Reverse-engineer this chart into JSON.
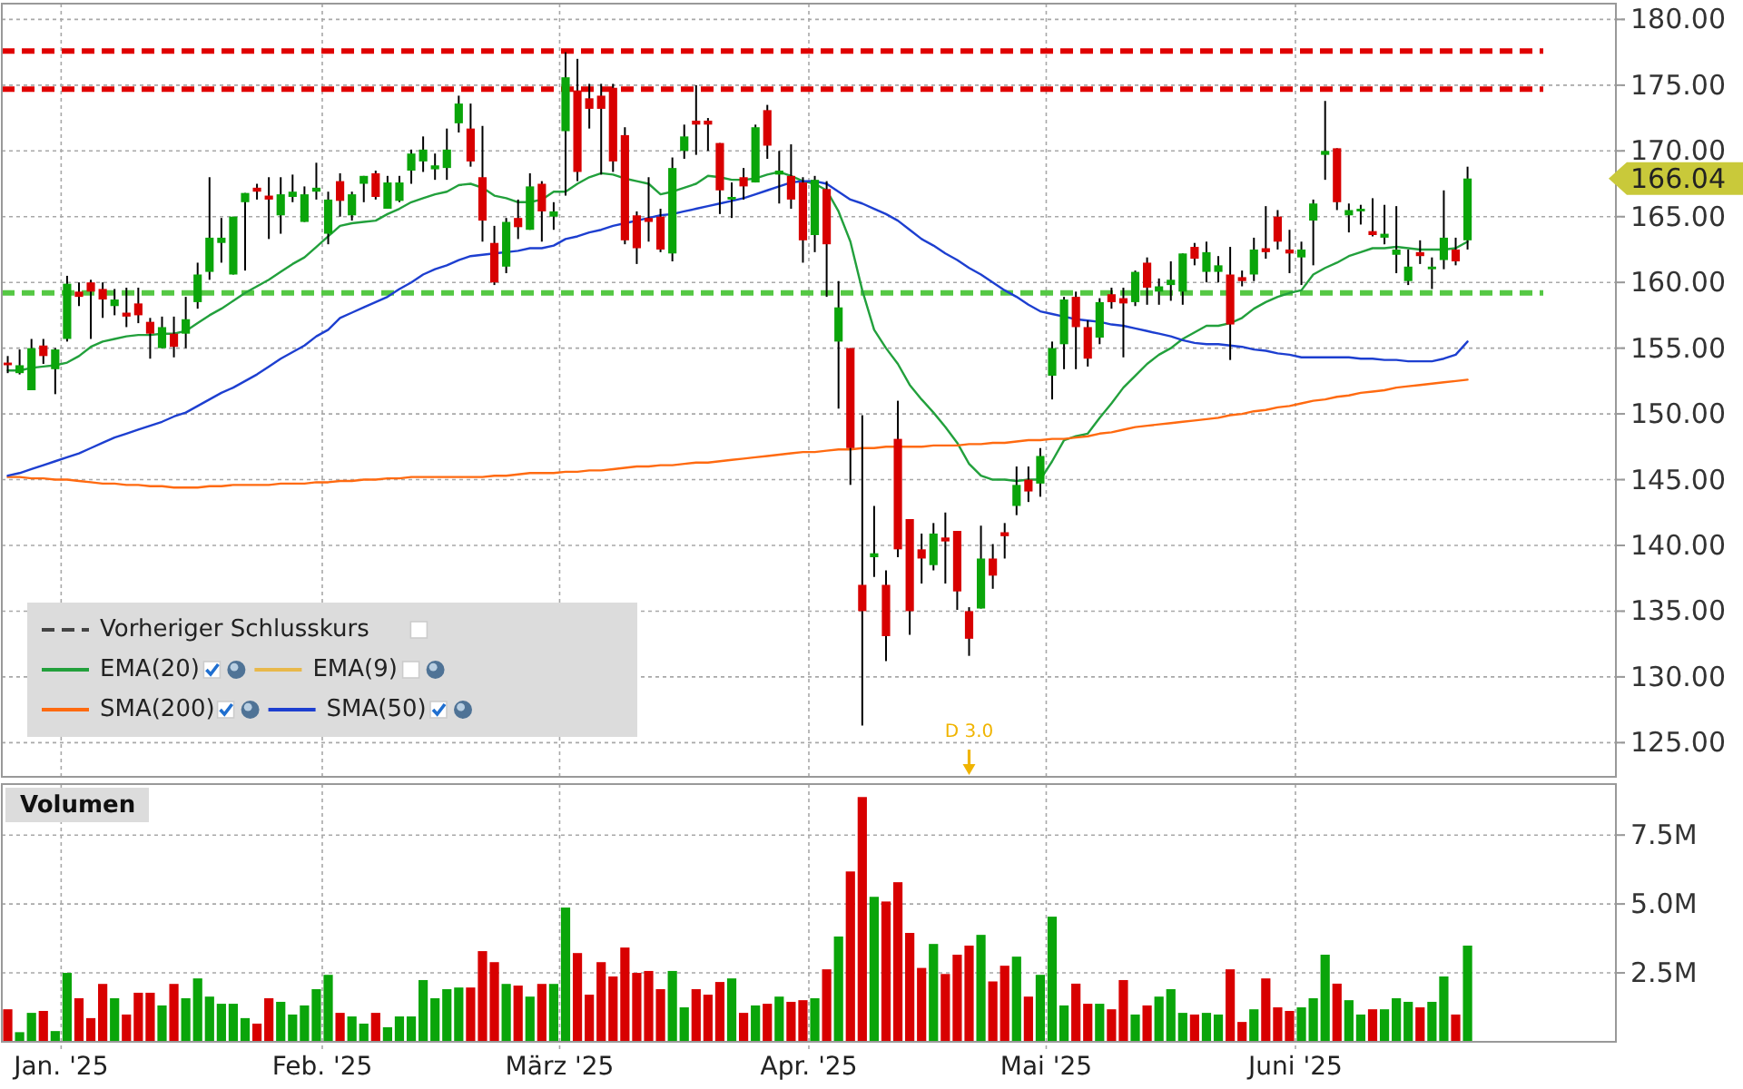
{
  "chart_data": [
    {
      "type": "candlestick",
      "categories": [
        null,
        null,
        null,
        null,
        null,
        null,
        null,
        null,
        null,
        null,
        null,
        null,
        null,
        null,
        null,
        null,
        null,
        null,
        null,
        null,
        null,
        null,
        null,
        null,
        null,
        null,
        null,
        null,
        null,
        null,
        null,
        null,
        null,
        null,
        null,
        null,
        null,
        null,
        null,
        null,
        null,
        null,
        null,
        null,
        null,
        null,
        null,
        null,
        null,
        null,
        null,
        null,
        null,
        null,
        null,
        null,
        null,
        null,
        null,
        null,
        null,
        null,
        null,
        null,
        null,
        null,
        null,
        null,
        null,
        null,
        null,
        null,
        null,
        null,
        null,
        null,
        null,
        null,
        null,
        null,
        null,
        null,
        null,
        null,
        null,
        null,
        null,
        null,
        null,
        null,
        null,
        null,
        null,
        null,
        null,
        null,
        null,
        null,
        null,
        null,
        null,
        null,
        null,
        null,
        null,
        null,
        null,
        null,
        null,
        null,
        null,
        null,
        null,
        null,
        null,
        null,
        null,
        null,
        null,
        null,
        null,
        null,
        null,
        null,
        null,
        null,
        null,
        null,
        null,
        null,
        null,
        null,
        null,
        null,
        null,
        null
      ],
      "ohlc": [
        [
          153.9,
          154.4,
          153.1,
          153.7
        ],
        [
          153.1,
          154.9,
          153.0,
          153.7
        ],
        [
          151.8,
          155.7,
          151.8,
          155.0
        ],
        [
          155.2,
          155.7,
          153.8,
          154.4
        ],
        [
          153.4,
          155.0,
          151.5,
          154.9
        ],
        [
          155.7,
          160.5,
          155.5,
          159.9
        ],
        [
          159.3,
          160.0,
          158.2,
          158.9
        ],
        [
          160.0,
          160.2,
          155.7,
          159.3
        ],
        [
          159.5,
          160.0,
          157.3,
          158.7
        ],
        [
          158.2,
          159.5,
          157.5,
          158.7
        ],
        [
          157.7,
          159.6,
          156.6,
          157.4
        ],
        [
          158.4,
          159.6,
          156.9,
          157.5
        ],
        [
          157.0,
          157.3,
          154.2,
          156.1
        ],
        [
          155.0,
          157.4,
          155.0,
          156.6
        ],
        [
          156.1,
          157.4,
          154.3,
          155.1
        ],
        [
          156.1,
          158.9,
          155.0,
          157.2
        ],
        [
          158.5,
          161.5,
          158.0,
          160.6
        ],
        [
          160.8,
          168.0,
          160.2,
          163.4
        ],
        [
          163.0,
          164.9,
          161.5,
          163.4
        ],
        [
          160.6,
          165.0,
          160.6,
          165.0
        ],
        [
          166.1,
          166.8,
          160.9,
          166.8
        ],
        [
          167.2,
          167.5,
          166.3,
          166.9
        ],
        [
          166.6,
          168.0,
          163.3,
          166.3
        ],
        [
          165.1,
          168.0,
          163.7,
          166.7
        ],
        [
          166.5,
          168.2,
          166.1,
          166.9
        ],
        [
          164.6,
          167.3,
          164.6,
          166.7
        ],
        [
          166.9,
          169.1,
          166.3,
          167.2
        ],
        [
          163.7,
          166.9,
          162.9,
          166.3
        ],
        [
          167.7,
          168.3,
          165.0,
          166.2
        ],
        [
          165.1,
          166.9,
          164.7,
          166.7
        ],
        [
          167.5,
          168.1,
          166.1,
          168.1
        ],
        [
          168.3,
          168.5,
          166.3,
          166.5
        ],
        [
          165.6,
          168.1,
          165.6,
          167.6
        ],
        [
          166.2,
          168.1,
          166.1,
          167.6
        ],
        [
          168.5,
          170.1,
          167.5,
          169.8
        ],
        [
          169.2,
          171.1,
          168.4,
          170.1
        ],
        [
          168.6,
          169.8,
          167.8,
          168.9
        ],
        [
          168.7,
          171.7,
          167.8,
          170.1
        ],
        [
          172.1,
          174.2,
          171.4,
          173.6
        ],
        [
          171.7,
          173.6,
          168.8,
          169.2
        ],
        [
          168.0,
          171.9,
          163.1,
          164.7
        ],
        [
          163.0,
          164.3,
          159.8,
          160.0
        ],
        [
          161.2,
          164.9,
          160.7,
          164.6
        ],
        [
          164.9,
          166.3,
          163.3,
          164.2
        ],
        [
          164.0,
          168.3,
          164.0,
          167.3
        ],
        [
          167.5,
          167.7,
          163.1,
          165.4
        ],
        [
          165.0,
          166.1,
          164.0,
          165.4
        ],
        [
          171.5,
          177.5,
          166.6,
          175.6
        ],
        [
          174.6,
          177.0,
          167.7,
          168.4
        ],
        [
          174.0,
          175.1,
          171.7,
          173.2
        ],
        [
          174.2,
          175.1,
          168.2,
          173.2
        ],
        [
          174.8,
          175.1,
          168.4,
          169.2
        ],
        [
          171.2,
          171.8,
          162.9,
          163.2
        ],
        [
          165.1,
          165.4,
          161.4,
          162.6
        ],
        [
          164.9,
          168.0,
          163.1,
          164.6
        ],
        [
          165.0,
          165.6,
          162.3,
          162.5
        ],
        [
          162.2,
          169.5,
          161.6,
          168.7
        ],
        [
          170.0,
          172.0,
          169.4,
          171.1
        ],
        [
          172.3,
          175.0,
          169.7,
          172.0
        ],
        [
          172.3,
          172.5,
          170.0,
          172.0
        ],
        [
          170.6,
          170.6,
          165.2,
          167.0
        ],
        [
          166.3,
          167.6,
          164.9,
          166.5
        ],
        [
          168.0,
          168.7,
          166.3,
          167.3
        ],
        [
          167.6,
          172.0,
          167.6,
          171.8
        ],
        [
          173.1,
          173.5,
          169.4,
          170.4
        ],
        [
          168.2,
          170.0,
          166.0,
          168.5
        ],
        [
          168.1,
          170.5,
          165.6,
          166.3
        ],
        [
          167.6,
          168.0,
          161.5,
          163.2
        ],
        [
          163.6,
          168.1,
          162.3,
          167.8
        ],
        [
          167.1,
          167.7,
          158.9,
          162.9
        ],
        [
          155.5,
          160.1,
          150.4,
          158.1
        ],
        [
          155.0,
          155.0,
          144.6,
          147.4
        ],
        [
          137.0,
          149.9,
          126.3,
          135.0
        ],
        [
          139.1,
          143.0,
          137.6,
          139.4
        ],
        [
          137.0,
          138.1,
          131.2,
          133.1
        ],
        [
          148.1,
          151.0,
          139.1,
          139.7
        ],
        [
          142.0,
          142.0,
          133.2,
          135.0
        ],
        [
          139.7,
          140.9,
          137.1,
          139.0
        ],
        [
          138.5,
          141.7,
          138.1,
          140.9
        ],
        [
          140.6,
          142.5,
          137.1,
          140.3
        ],
        [
          141.1,
          141.1,
          135.1,
          136.5
        ],
        [
          135.0,
          135.3,
          131.6,
          132.9
        ],
        [
          135.2,
          141.5,
          135.2,
          139.0
        ],
        [
          139.0,
          140.1,
          136.7,
          137.7
        ],
        [
          141.0,
          141.7,
          139.0,
          140.7
        ],
        [
          143.0,
          146.0,
          142.3,
          144.6
        ],
        [
          145.0,
          146.0,
          143.3,
          144.1
        ],
        [
          144.7,
          147.4,
          143.7,
          146.8
        ],
        [
          152.9,
          155.5,
          151.1,
          155.0
        ],
        [
          155.3,
          158.9,
          153.4,
          158.7
        ],
        [
          158.9,
          159.3,
          153.4,
          156.6
        ],
        [
          156.6,
          157.1,
          153.6,
          154.2
        ],
        [
          155.8,
          158.8,
          155.3,
          158.5
        ],
        [
          159.1,
          159.6,
          158.0,
          158.5
        ],
        [
          158.8,
          159.6,
          154.3,
          158.4
        ],
        [
          158.5,
          160.9,
          158.2,
          160.8
        ],
        [
          161.5,
          161.9,
          158.3,
          159.6
        ],
        [
          159.3,
          160.3,
          158.3,
          159.7
        ],
        [
          159.8,
          161.6,
          158.6,
          160.2
        ],
        [
          159.3,
          162.2,
          158.3,
          162.2
        ],
        [
          162.7,
          163.0,
          161.3,
          161.8
        ],
        [
          160.8,
          163.1,
          160.0,
          162.3
        ],
        [
          160.8,
          162.0,
          160.0,
          161.3
        ],
        [
          160.6,
          162.7,
          154.1,
          156.8
        ],
        [
          160.4,
          160.9,
          159.7,
          160.1
        ],
        [
          160.6,
          163.4,
          160.1,
          162.5
        ],
        [
          162.6,
          165.8,
          161.8,
          162.3
        ],
        [
          165.0,
          165.5,
          162.5,
          163.1
        ],
        [
          162.5,
          164.0,
          160.7,
          162.2
        ],
        [
          161.9,
          163.1,
          159.8,
          162.5
        ],
        [
          164.7,
          166.3,
          161.3,
          166.0
        ],
        [
          169.7,
          173.8,
          167.8,
          170.0
        ],
        [
          170.2,
          170.2,
          165.5,
          166.1
        ],
        [
          165.1,
          166.0,
          163.8,
          165.5
        ],
        [
          165.4,
          165.9,
          164.4,
          165.6
        ],
        [
          163.9,
          166.4,
          163.5,
          163.6
        ],
        [
          163.4,
          165.9,
          162.9,
          163.7
        ],
        [
          162.1,
          165.8,
          160.7,
          162.5
        ],
        [
          160.1,
          162.5,
          159.8,
          161.2
        ],
        [
          162.3,
          163.2,
          161.4,
          162.0
        ],
        [
          161.0,
          161.9,
          159.5,
          161.2
        ],
        [
          161.7,
          167.0,
          161.0,
          163.4
        ],
        [
          162.5,
          163.4,
          161.3,
          161.6
        ],
        [
          163.2,
          168.8,
          162.5,
          167.9
        ],
        null,
        null,
        null,
        null,
        null,
        null,
        null,
        null,
        null,
        null,
        null,
        null
      ],
      "colors": [
        "#d80000",
        "#0aa50a",
        "#0aa50a",
        "#d80000",
        "#0aa50a",
        "#0aa50a",
        "#d80000",
        "#d80000",
        "#d80000",
        "#0aa50a",
        "#d80000",
        "#d80000",
        "#d80000",
        "#0aa50a",
        "#d80000",
        "#0aa50a",
        "#0aa50a",
        "#0aa50a",
        "#0aa50a",
        "#0aa50a",
        "#0aa50a",
        "#d80000",
        "#d80000",
        "#0aa50a",
        "#0aa50a",
        "#0aa50a",
        "#0aa50a",
        "#0aa50a",
        "#d80000",
        "#0aa50a",
        "#0aa50a",
        "#d80000",
        "#0aa50a",
        "#0aa50a",
        "#0aa50a",
        "#0aa50a",
        "#0aa50a",
        "#0aa50a",
        "#0aa50a",
        "#d80000",
        "#d80000",
        "#d80000",
        "#0aa50a",
        "#d80000",
        "#0aa50a",
        "#d80000",
        "#0aa50a",
        "#0aa50a",
        "#d80000",
        "#d80000",
        "#d80000",
        "#d80000",
        "#d80000",
        "#d80000",
        "#d80000",
        "#d80000",
        "#0aa50a",
        "#0aa50a",
        "#d80000",
        "#d80000",
        "#d80000",
        "#0aa50a",
        "#d80000",
        "#0aa50a",
        "#d80000",
        "#0aa50a",
        "#d80000",
        "#d80000",
        "#0aa50a",
        "#d80000",
        "#0aa50a",
        "#d80000",
        "#d80000",
        "#0aa50a",
        "#d80000",
        "#d80000",
        "#d80000",
        "#d80000",
        "#0aa50a",
        "#d80000",
        "#d80000",
        "#d80000",
        "#0aa50a",
        "#d80000",
        "#d80000",
        "#0aa50a",
        "#d80000",
        "#0aa50a",
        "#0aa50a",
        "#0aa50a",
        "#d80000",
        "#d80000",
        "#0aa50a",
        "#d80000",
        "#d80000",
        "#0aa50a",
        "#d80000",
        "#0aa50a",
        "#0aa50a",
        "#0aa50a",
        "#d80000",
        "#0aa50a",
        "#0aa50a",
        "#d80000",
        "#d80000",
        "#0aa50a",
        "#d80000",
        "#d80000",
        "#d80000",
        "#0aa50a",
        "#0aa50a",
        "#0aa50a",
        "#d80000",
        "#0aa50a",
        "#0aa50a",
        "#d80000",
        "#0aa50a",
        "#0aa50a",
        "#0aa50a",
        "#d80000",
        "#0aa50a",
        "#0aa50a",
        "#d80000",
        "#0aa50a",
        null,
        null,
        null,
        null,
        null,
        null,
        null,
        null,
        null,
        null,
        null,
        null
      ],
      "series": [
        {
          "name": "Vorheriger Schlusskurs",
          "type": "line",
          "color": "#444444",
          "line_style": "dashed",
          "values": [
            null,
            null,
            null,
            null,
            null,
            null,
            null,
            null,
            null,
            null,
            null,
            null,
            null,
            null,
            null,
            null,
            null,
            null,
            null,
            null,
            null,
            null,
            null,
            null,
            null,
            null,
            null,
            null,
            null,
            null,
            null,
            null,
            null,
            null,
            null,
            null,
            null,
            null,
            null,
            null,
            null,
            null,
            null,
            null,
            null,
            null,
            null,
            null,
            null,
            null,
            null,
            null,
            null,
            null,
            null,
            null,
            null,
            null,
            null,
            null,
            null,
            null,
            null,
            null,
            null,
            null,
            null,
            null,
            null,
            null,
            null,
            null,
            null,
            null,
            null,
            null,
            null,
            null,
            null,
            null,
            null,
            null,
            null,
            null,
            null,
            null,
            null,
            null,
            null,
            null,
            null,
            null,
            null,
            null,
            null,
            null,
            null,
            null,
            null,
            null,
            null,
            null,
            null,
            null,
            null,
            null,
            null,
            null,
            null,
            null,
            null,
            null,
            null,
            null,
            null,
            null,
            null,
            null,
            null,
            null,
            null,
            null,
            null,
            null,
            null,
            null,
            null,
            null,
            null,
            null,
            null,
            null,
            null,
            null,
            null,
            null
          ]
        },
        {
          "name": "EMA(20)",
          "type": "line",
          "color": "#22a03c",
          "values": [
            153.3,
            153.3,
            153.5,
            153.6,
            153.7,
            153.9,
            154.4,
            155.1,
            155.5,
            155.7,
            155.9,
            156.0,
            156.0,
            156.1,
            156.1,
            156.3,
            156.9,
            157.5,
            158.0,
            158.6,
            159.2,
            159.7,
            160.2,
            160.8,
            161.4,
            161.9,
            162.7,
            163.5,
            164.3,
            164.5,
            164.6,
            164.7,
            165.2,
            165.6,
            166.1,
            166.4,
            166.7,
            166.9,
            167.4,
            167.5,
            167.2,
            166.6,
            166.4,
            166.1,
            166.1,
            166.3,
            166.9,
            166.9,
            167.5,
            168.0,
            168.3,
            168.2,
            167.9,
            167.7,
            167.5,
            166.7,
            166.9,
            167.2,
            167.5,
            168.1,
            168.0,
            167.8,
            167.8,
            167.9,
            168.2,
            168.4,
            168.1,
            167.7,
            167.5,
            167.0,
            165.4,
            163.1,
            159.4,
            156.4,
            155.0,
            153.8,
            152.2,
            151.1,
            150.1,
            149.0,
            147.8,
            146.2,
            145.3,
            145.0,
            145.0,
            144.9,
            145.0,
            145.0,
            146.4,
            148.0,
            148.3,
            148.5,
            149.7,
            150.8,
            152.0,
            152.9,
            153.8,
            154.5,
            155.0,
            155.7,
            156.2,
            156.7,
            156.7,
            156.9,
            157.3,
            158.0,
            158.5,
            158.9,
            159.2,
            159.4,
            160.6,
            161.1,
            161.5,
            162.0,
            162.3,
            162.6,
            162.6,
            162.7,
            162.6,
            162.5,
            162.5,
            162.5,
            162.6,
            163.1,
            null,
            null,
            null,
            null,
            null,
            null,
            null,
            null,
            null,
            null,
            null,
            null
          ]
        },
        {
          "name": "EMA(9)",
          "type": "line",
          "color": "#e8b84a",
          "values": [
            null,
            null,
            null,
            null,
            null,
            null,
            null,
            null,
            null,
            null,
            null,
            null,
            null,
            null,
            null,
            null,
            null,
            null,
            null,
            null,
            null,
            null,
            null,
            null,
            null,
            null,
            null,
            null,
            null,
            null,
            null,
            null,
            null,
            null,
            null,
            null,
            null,
            null,
            null,
            null,
            null,
            null,
            null,
            null,
            null,
            null,
            null,
            null,
            null,
            null,
            null,
            null,
            null,
            null,
            null,
            null,
            null,
            null,
            null,
            null,
            null,
            null,
            null,
            null,
            null,
            null,
            null,
            null,
            null,
            null,
            null,
            null,
            null,
            null,
            null,
            null,
            null,
            null,
            null,
            null,
            null,
            null,
            null,
            null,
            null,
            null,
            null,
            null,
            null,
            null,
            null,
            null,
            null,
            null,
            null,
            null,
            null,
            null,
            null,
            null,
            null,
            null,
            null,
            null,
            null,
            null,
            null,
            null,
            null,
            null,
            null,
            null,
            null,
            null,
            null,
            null,
            null,
            null,
            null,
            null,
            null,
            null,
            null,
            null,
            null,
            null,
            null,
            null,
            null,
            null,
            null,
            null,
            null,
            null,
            null,
            null
          ]
        },
        {
          "name": "SMA(200)",
          "type": "line",
          "color": "#ff6a10",
          "values": [
            145.2,
            145.2,
            145.1,
            145.1,
            145.0,
            145.0,
            144.9,
            144.8,
            144.7,
            144.7,
            144.6,
            144.6,
            144.5,
            144.5,
            144.4,
            144.4,
            144.4,
            144.5,
            144.5,
            144.6,
            144.6,
            144.6,
            144.6,
            144.7,
            144.7,
            144.7,
            144.8,
            144.8,
            144.9,
            144.9,
            145.0,
            145.0,
            145.1,
            145.1,
            145.2,
            145.2,
            145.2,
            145.2,
            145.2,
            145.2,
            145.2,
            145.3,
            145.3,
            145.4,
            145.5,
            145.5,
            145.5,
            145.6,
            145.6,
            145.7,
            145.7,
            145.8,
            145.9,
            146.0,
            146.0,
            146.1,
            146.1,
            146.2,
            146.3,
            146.3,
            146.4,
            146.5,
            146.6,
            146.7,
            146.8,
            146.9,
            147.0,
            147.1,
            147.1,
            147.2,
            147.3,
            147.3,
            147.4,
            147.4,
            147.5,
            147.5,
            147.5,
            147.5,
            147.6,
            147.6,
            147.6,
            147.7,
            147.7,
            147.8,
            147.8,
            147.9,
            148.0,
            148.0,
            148.1,
            148.1,
            148.2,
            148.3,
            148.5,
            148.6,
            148.8,
            149.0,
            149.1,
            149.2,
            149.3,
            149.4,
            149.5,
            149.6,
            149.7,
            149.9,
            150.0,
            150.2,
            150.3,
            150.5,
            150.6,
            150.8,
            151.0,
            151.1,
            151.3,
            151.4,
            151.6,
            151.7,
            151.8,
            152.0,
            152.1,
            152.2,
            152.3,
            152.4,
            152.5,
            152.6,
            null,
            null,
            null,
            null,
            null,
            null,
            null,
            null,
            null,
            null,
            null,
            null
          ]
        },
        {
          "name": "SMA(50)",
          "type": "line",
          "color": "#1d3fd0",
          "values": [
            145.3,
            145.5,
            145.8,
            146.1,
            146.4,
            146.7,
            147.0,
            147.4,
            147.8,
            148.2,
            148.5,
            148.8,
            149.1,
            149.4,
            149.8,
            150.1,
            150.6,
            151.1,
            151.6,
            152.0,
            152.5,
            153.0,
            153.6,
            154.2,
            154.7,
            155.2,
            155.9,
            156.4,
            157.3,
            157.7,
            158.1,
            158.5,
            158.9,
            159.5,
            160.0,
            160.6,
            161.0,
            161.3,
            161.7,
            162.0,
            162.1,
            162.2,
            162.3,
            162.4,
            162.6,
            162.6,
            162.8,
            163.3,
            163.5,
            163.8,
            164.0,
            164.3,
            164.5,
            164.7,
            164.9,
            165.1,
            165.2,
            165.4,
            165.6,
            165.8,
            166.0,
            166.2,
            166.4,
            166.7,
            167.0,
            167.3,
            167.6,
            167.7,
            167.7,
            167.5,
            166.9,
            166.3,
            166.0,
            165.6,
            165.2,
            164.7,
            164.0,
            163.3,
            162.8,
            162.2,
            161.7,
            161.1,
            160.6,
            160.0,
            159.4,
            158.9,
            158.3,
            157.8,
            157.6,
            157.4,
            157.2,
            157.1,
            157.0,
            156.8,
            156.7,
            156.5,
            156.3,
            156.1,
            155.9,
            155.6,
            155.4,
            155.3,
            155.3,
            155.2,
            155.1,
            154.9,
            154.8,
            154.6,
            154.5,
            154.3,
            154.3,
            154.3,
            154.3,
            154.3,
            154.2,
            154.2,
            154.1,
            154.1,
            154.0,
            154.0,
            154.0,
            154.2,
            154.5,
            155.5,
            null,
            null,
            null,
            null,
            null,
            null,
            null,
            null,
            null,
            null,
            null,
            null
          ]
        }
      ],
      "ylim": [
        122.4,
        181.2
      ],
      "yticks": [
        {
          "value": 125,
          "label": "125.00"
        },
        {
          "value": 130,
          "label": "130.00"
        },
        {
          "value": 135,
          "label": "135.00"
        },
        {
          "value": 140,
          "label": "140.00"
        },
        {
          "value": 145,
          "label": "145.00"
        },
        {
          "value": 150,
          "label": "150.00"
        },
        {
          "value": 155,
          "label": "155.00"
        },
        {
          "value": 160,
          "label": "160.00"
        },
        {
          "value": 165,
          "label": "165.00"
        },
        {
          "value": 170,
          "label": "170.00"
        },
        {
          "value": 175,
          "label": "175.00"
        },
        {
          "value": 180,
          "label": "180.00"
        }
      ],
      "ref_lines": [
        {
          "axis": "y",
          "value": 177.6,
          "color": "#e00000",
          "line_style": "dashed"
        },
        {
          "axis": "y",
          "value": 174.7,
          "color": "#e00000",
          "line_style": "dashed"
        },
        {
          "axis": "y",
          "value": 159.2,
          "color": "#55c844",
          "line_style": "dashed"
        }
      ],
      "annotations": [
        "166.04",
        "D 3.0"
      ],
      "grid": true,
      "legend": "bottom left",
      "tick_labels": "y"
    },
    {
      "type": "bar",
      "title": "Volumen",
      "categories": [
        null,
        null,
        null,
        null,
        null,
        "Jan. '25",
        null,
        null,
        null,
        null,
        null,
        null,
        null,
        null,
        null,
        null,
        null,
        null,
        null,
        null,
        null,
        null,
        null,
        null,
        null,
        null,
        null,
        "Feb. '25",
        null,
        null,
        null,
        null,
        null,
        null,
        null,
        null,
        null,
        null,
        null,
        null,
        null,
        null,
        null,
        null,
        null,
        null,
        null,
        "März '25",
        null,
        null,
        null,
        null,
        null,
        null,
        null,
        null,
        null,
        null,
        null,
        null,
        null,
        null,
        null,
        null,
        null,
        null,
        null,
        null,
        "Apr. '25",
        null,
        null,
        null,
        null,
        null,
        null,
        null,
        null,
        null,
        null,
        null,
        null,
        null,
        null,
        null,
        null,
        null,
        null,
        null,
        "Mai '25",
        null,
        null,
        null,
        null,
        null,
        null,
        null,
        null,
        null,
        null,
        null,
        null,
        null,
        null,
        null,
        null,
        null,
        null,
        null,
        null,
        "Juni '25",
        null,
        null,
        null,
        null,
        null,
        null,
        null,
        null,
        null,
        null,
        null,
        null,
        null,
        null,
        null,
        null,
        null,
        null,
        null,
        null,
        null,
        null,
        null,
        null,
        null,
        null
      ],
      "values": [
        1.18,
        0.35,
        1.05,
        1.12,
        0.39,
        2.5,
        1.58,
        0.86,
        2.1,
        1.58,
        0.99,
        1.78,
        1.78,
        1.32,
        2.1,
        1.58,
        2.3,
        1.64,
        1.38,
        1.38,
        0.86,
        0.66,
        1.58,
        1.45,
        0.99,
        1.32,
        1.91,
        2.43,
        1.05,
        0.92,
        0.66,
        1.05,
        0.53,
        0.92,
        0.92,
        2.24,
        1.58,
        1.91,
        1.97,
        1.97,
        3.29,
        2.89,
        2.1,
        2.04,
        1.64,
        2.1,
        2.1,
        4.87,
        3.22,
        1.71,
        2.89,
        2.37,
        3.42,
        2.5,
        2.57,
        1.91,
        2.57,
        1.25,
        1.91,
        1.71,
        2.17,
        2.3,
        1.05,
        1.32,
        1.38,
        1.64,
        1.45,
        1.51,
        1.58,
        2.63,
        3.82,
        6.18,
        8.88,
        5.26,
        5.09,
        5.79,
        3.95,
        2.68,
        3.55,
        2.46,
        3.16,
        3.49,
        3.88,
        2.19,
        2.76,
        3.09,
        1.64,
        2.43,
        4.54,
        1.32,
        2.11,
        1.38,
        1.38,
        1.18,
        2.24,
        0.99,
        1.32,
        1.64,
        1.91,
        1.05,
        0.99,
        1.05,
        0.99,
        2.63,
        0.72,
        1.18,
        2.3,
        1.25,
        1.12,
        1.25,
        1.58,
        3.16,
        2.11,
        1.51,
        0.99,
        1.18,
        1.18,
        1.58,
        1.45,
        1.25,
        1.45,
        2.37,
        0.99,
        3.49,
        null,
        null,
        null,
        null,
        null,
        null,
        null,
        null,
        null,
        null,
        null,
        null
      ],
      "colors": [
        "#d80000",
        "#0aa50a",
        "#0aa50a",
        "#d80000",
        "#0aa50a",
        "#0aa50a",
        "#d80000",
        "#d80000",
        "#d80000",
        "#0aa50a",
        "#d80000",
        "#d80000",
        "#d80000",
        "#0aa50a",
        "#d80000",
        "#0aa50a",
        "#0aa50a",
        "#0aa50a",
        "#0aa50a",
        "#0aa50a",
        "#0aa50a",
        "#d80000",
        "#d80000",
        "#0aa50a",
        "#0aa50a",
        "#0aa50a",
        "#0aa50a",
        "#0aa50a",
        "#d80000",
        "#0aa50a",
        "#0aa50a",
        "#d80000",
        "#0aa50a",
        "#0aa50a",
        "#0aa50a",
        "#0aa50a",
        "#0aa50a",
        "#0aa50a",
        "#0aa50a",
        "#d80000",
        "#d80000",
        "#d80000",
        "#0aa50a",
        "#d80000",
        "#0aa50a",
        "#d80000",
        "#0aa50a",
        "#0aa50a",
        "#d80000",
        "#d80000",
        "#d80000",
        "#d80000",
        "#d80000",
        "#d80000",
        "#d80000",
        "#d80000",
        "#0aa50a",
        "#0aa50a",
        "#d80000",
        "#d80000",
        "#d80000",
        "#0aa50a",
        "#d80000",
        "#0aa50a",
        "#d80000",
        "#0aa50a",
        "#d80000",
        "#d80000",
        "#0aa50a",
        "#d80000",
        "#0aa50a",
        "#d80000",
        "#d80000",
        "#0aa50a",
        "#d80000",
        "#d80000",
        "#d80000",
        "#d80000",
        "#0aa50a",
        "#d80000",
        "#d80000",
        "#d80000",
        "#0aa50a",
        "#d80000",
        "#d80000",
        "#0aa50a",
        "#d80000",
        "#0aa50a",
        "#0aa50a",
        "#0aa50a",
        "#d80000",
        "#d80000",
        "#0aa50a",
        "#d80000",
        "#d80000",
        "#0aa50a",
        "#d80000",
        "#0aa50a",
        "#0aa50a",
        "#0aa50a",
        "#d80000",
        "#0aa50a",
        "#0aa50a",
        "#d80000",
        "#d80000",
        "#0aa50a",
        "#d80000",
        "#d80000",
        "#d80000",
        "#0aa50a",
        "#0aa50a",
        "#0aa50a",
        "#d80000",
        "#0aa50a",
        "#0aa50a",
        "#d80000",
        "#0aa50a",
        "#0aa50a",
        "#0aa50a",
        "#d80000",
        "#0aa50a",
        "#0aa50a",
        "#d80000",
        "#0aa50a",
        null,
        null,
        null,
        null,
        null,
        null,
        null,
        null,
        null,
        null,
        null,
        null
      ],
      "ylim": [
        0,
        9.35
      ],
      "yticks": [
        {
          "value": 2.5,
          "label": "2.5M"
        },
        {
          "value": 5,
          "label": "5.0M"
        },
        {
          "value": 7.5,
          "label": "7.5M"
        }
      ],
      "grid": true
    }
  ]
}
